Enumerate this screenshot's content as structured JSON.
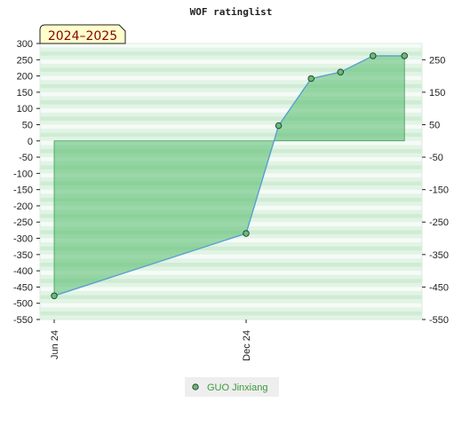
{
  "chart_data": {
    "type": "area",
    "title": "WOF ratinglist",
    "badge": "2024–2025",
    "xlabel": "",
    "ylabel": "",
    "x_ticks": [
      "Jun 24",
      "Dec 24"
    ],
    "ylim": [
      -550,
      300
    ],
    "y_ticks_left": [
      300,
      250,
      200,
      150,
      100,
      50,
      0,
      -50,
      -100,
      -150,
      -200,
      -250,
      -300,
      -350,
      -400,
      -450,
      -500,
      -550
    ],
    "y_ticks_right": [
      250,
      150,
      50,
      -50,
      -150,
      -250,
      -350,
      -450,
      -550
    ],
    "grid": "horizontal bands",
    "legend_position": "bottom-center",
    "colors": {
      "fill": "#5fbf74",
      "line": "#5a9fd4",
      "marker": "#3f9a55",
      "band": "#bfe6c6",
      "badge_bg": "#ffffcc",
      "legend_text": "#3a9a3a"
    },
    "series": [
      {
        "name": "GUO Jinxiang",
        "x": [
          "2024-06",
          "2024-12",
          "2025-01",
          "2025-02",
          "2025-03",
          "2025-04",
          "2025-05"
        ],
        "values": [
          -477,
          -285,
          47,
          192,
          212,
          262,
          262
        ]
      }
    ]
  }
}
